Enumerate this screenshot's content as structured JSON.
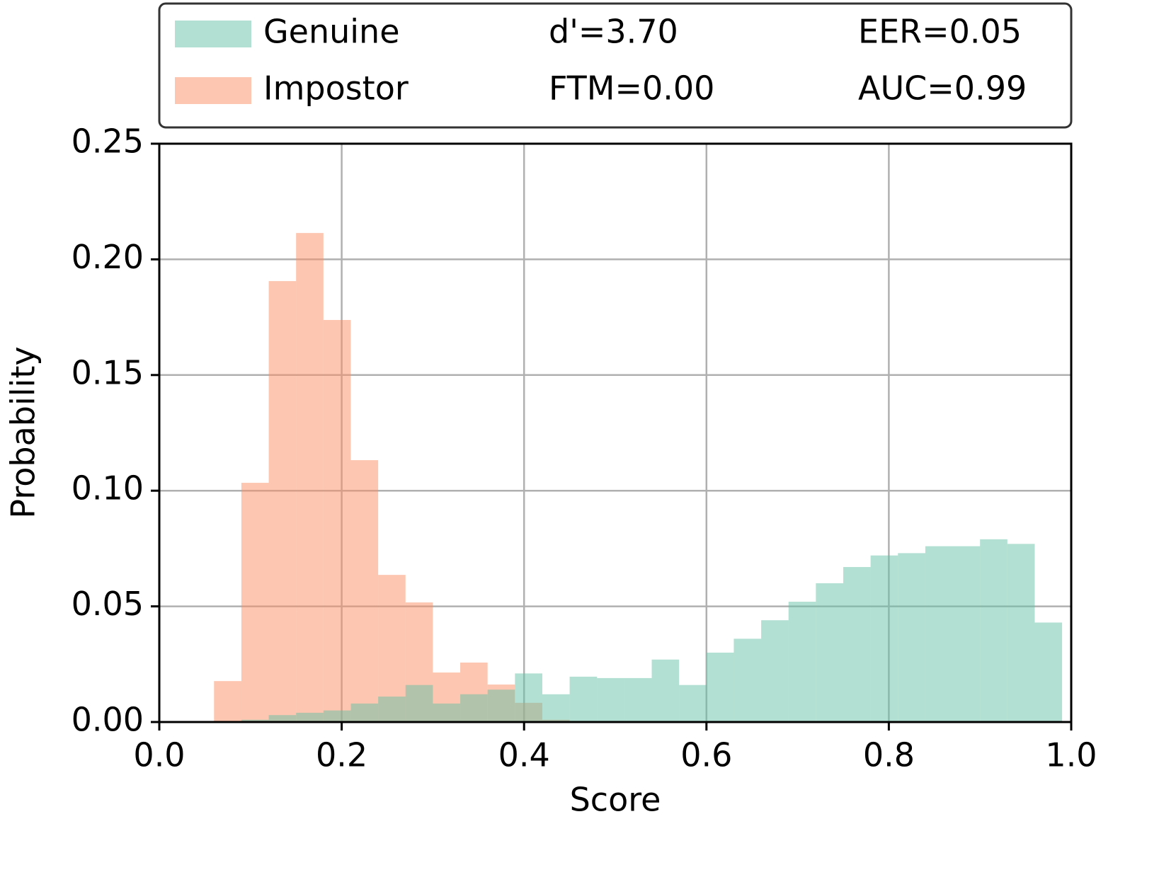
{
  "chart_data": {
    "type": "histogram",
    "xlabel": "Score",
    "ylabel": "Probability",
    "bins": [
      0.06,
      0.09,
      0.12,
      0.15,
      0.18,
      0.21,
      0.24,
      0.27,
      0.3,
      0.33,
      0.36,
      0.39,
      0.42,
      0.45,
      0.48,
      0.51,
      0.54,
      0.57,
      0.6,
      0.63,
      0.66,
      0.69,
      0.72,
      0.75,
      0.78,
      0.81,
      0.84,
      0.87,
      0.9,
      0.93,
      0.96,
      0.99
    ],
    "series": [
      {
        "name": "Genuine",
        "color": "#66c2a5",
        "values": [
          0,
          0.001,
          0.003,
          0.004,
          0.005,
          0.008,
          0.011,
          0.016,
          0.008,
          0.012,
          0.014,
          0.021,
          0.012,
          0.0196,
          0.019,
          0.019,
          0.027,
          0.016,
          0.03,
          0.036,
          0.044,
          0.052,
          0.06,
          0.067,
          0.072,
          0.073,
          0.076,
          0.076,
          0.079,
          0.077,
          0.043
        ]
      },
      {
        "name": "Impostor",
        "color": "#fc8d62",
        "values": [
          0.0177,
          0.1034,
          0.1906,
          0.2114,
          0.1738,
          0.1132,
          0.0636,
          0.0517,
          0.0214,
          0.0257,
          0.0162,
          0.0083,
          0.001,
          0,
          0,
          0,
          0,
          0,
          0,
          0,
          0,
          0,
          0,
          0,
          0,
          0,
          0,
          0,
          0,
          0,
          0
        ]
      }
    ],
    "legend_stats": [
      [
        "d'=3.70",
        "EER=0.05"
      ],
      [
        "FTM=0.00",
        "AUC=0.99"
      ]
    ],
    "xlim": [
      0,
      1
    ],
    "ylim": [
      0,
      0.25
    ],
    "xticks": [
      {
        "value": 0,
        "label": "0.0"
      },
      0.2,
      0.4,
      0.6,
      0.8,
      {
        "value": 1,
        "label": "1.0"
      }
    ],
    "yticks": [
      {
        "value": 0,
        "label": "0.00"
      },
      {
        "value": 0.05,
        "label": "0.05"
      },
      {
        "value": 0.1,
        "label": "0.10"
      },
      {
        "value": 0.15,
        "label": "0.15"
      },
      {
        "value": 0.2,
        "label": "0.20"
      },
      {
        "value": 0.25,
        "label": "0.25"
      }
    ],
    "grid": true,
    "opacity": 0.5
  }
}
